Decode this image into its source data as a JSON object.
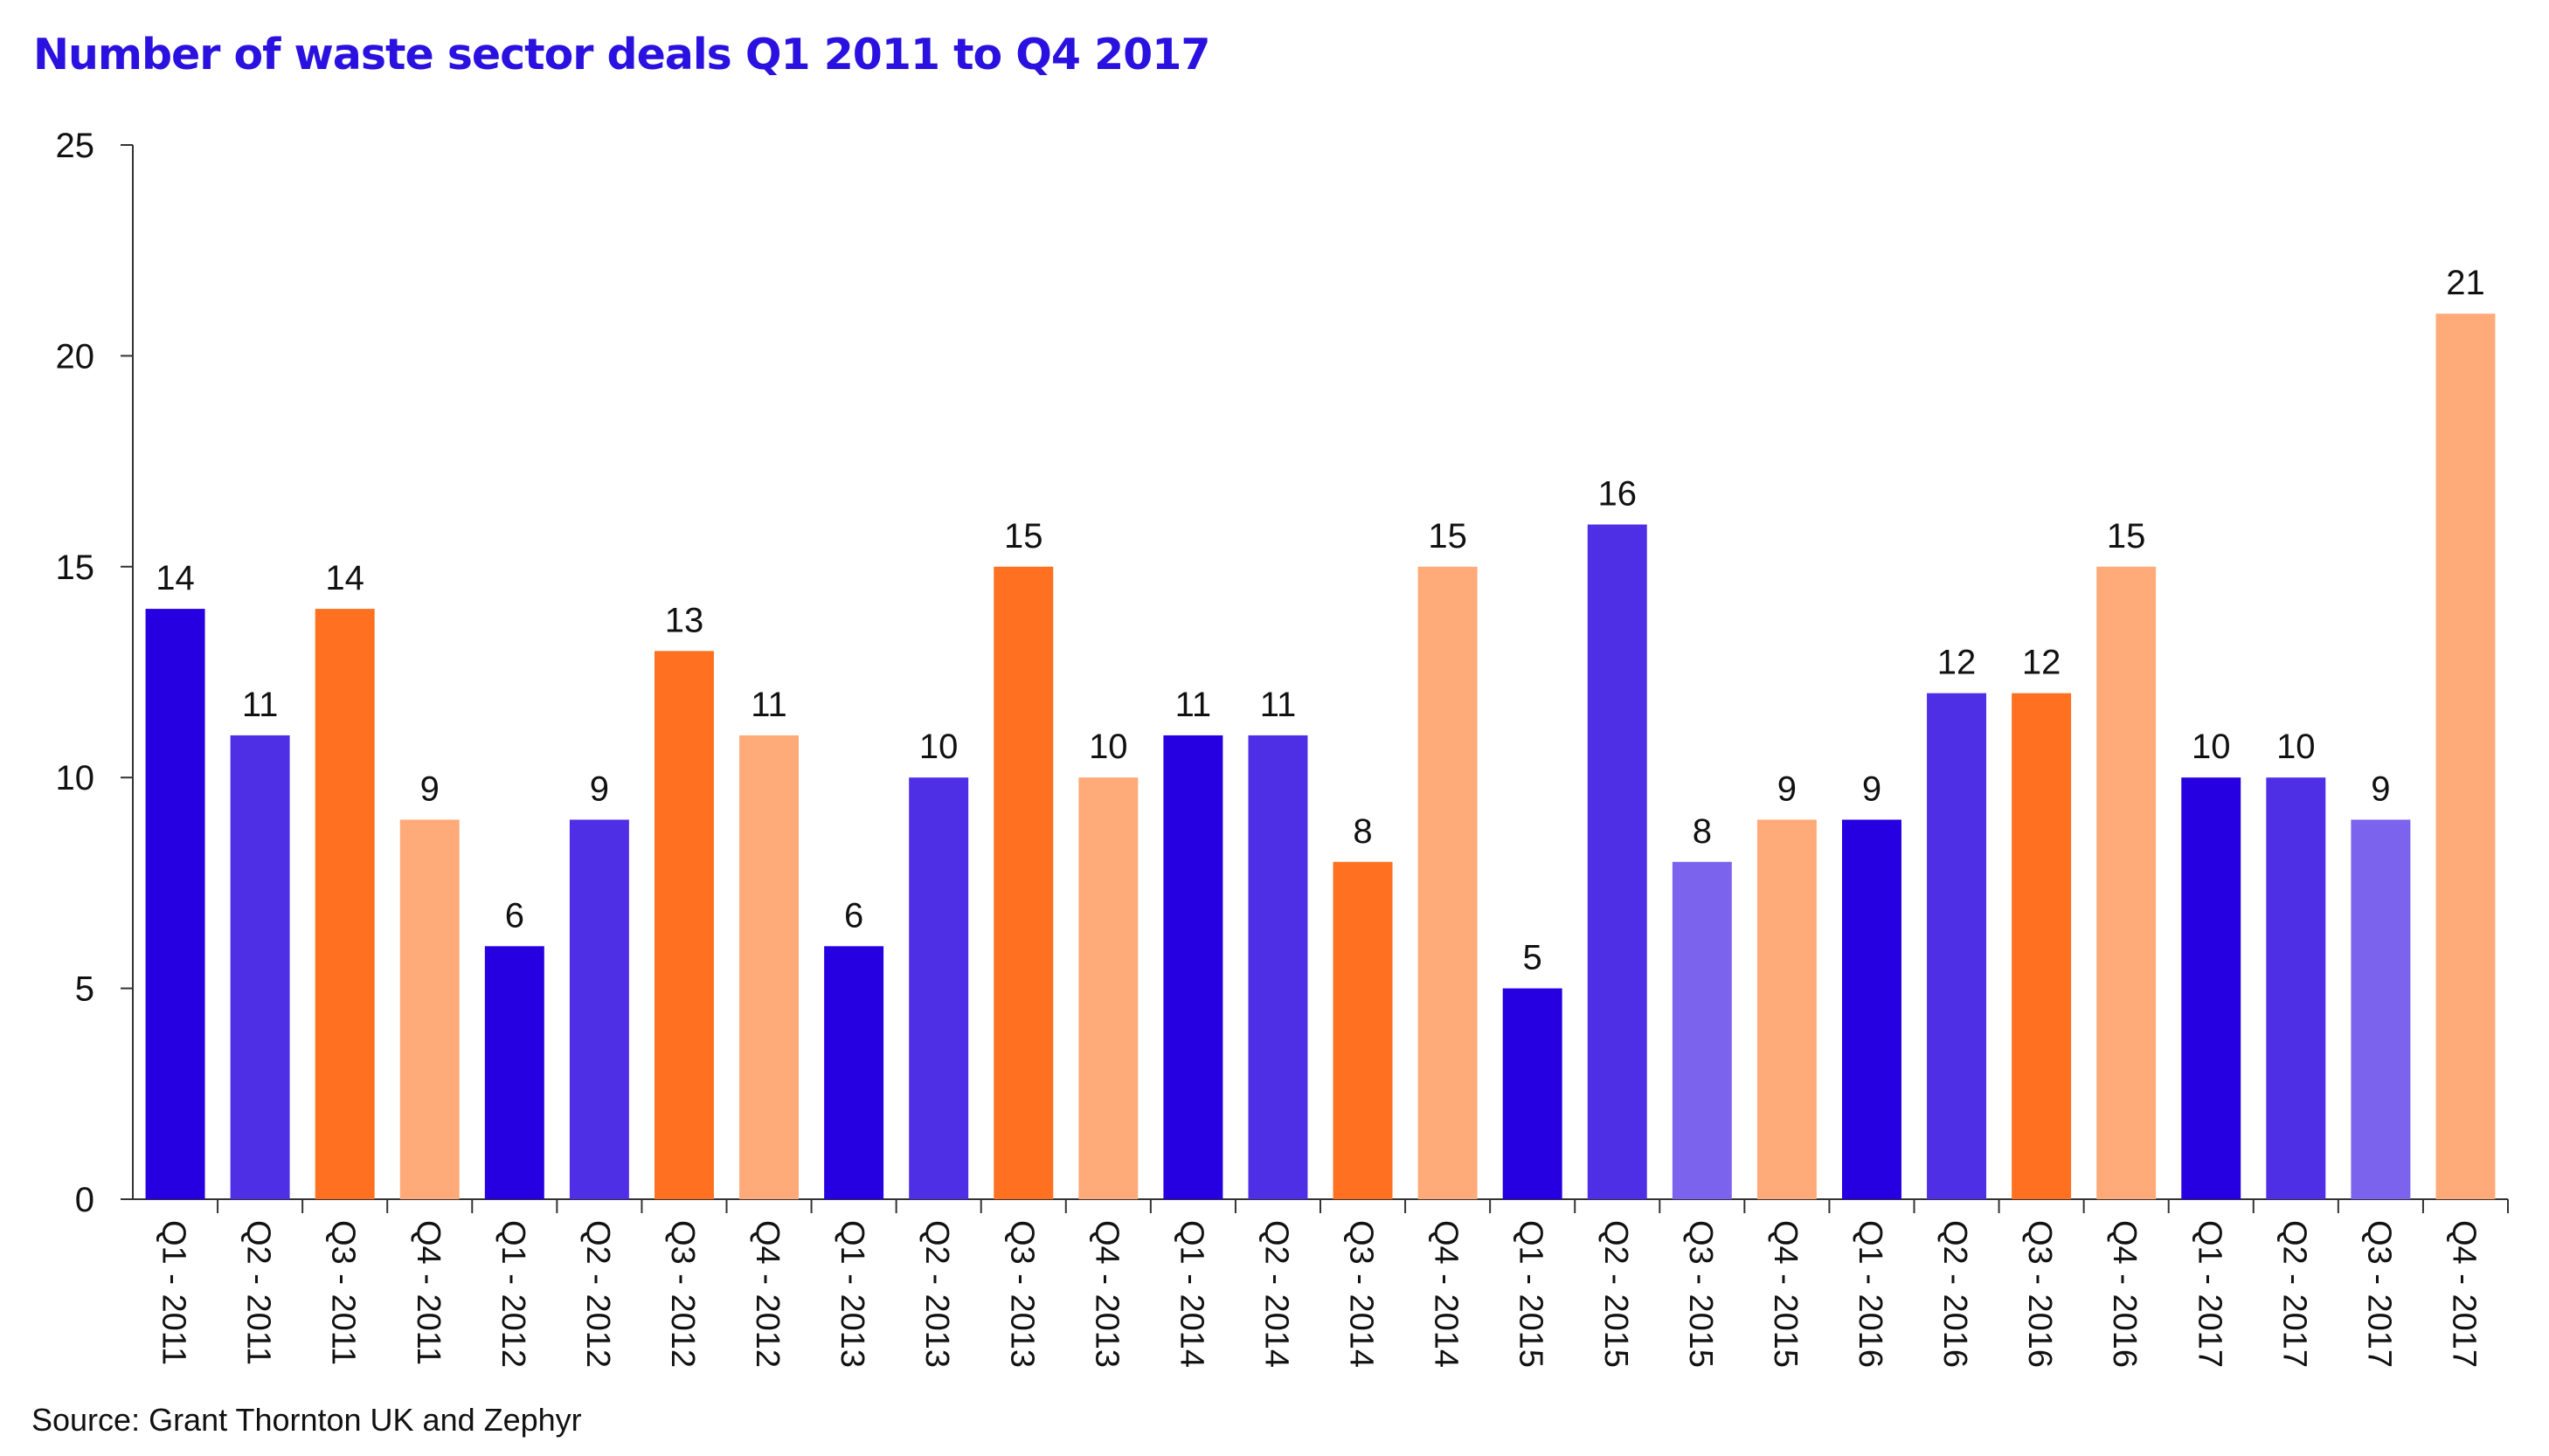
{
  "chart_data": {
    "type": "bar",
    "title": "Number of waste sector deals Q1 2011 to Q4 2017",
    "source": "Source: Grant Thornton UK and Zephyr",
    "xlabel": "",
    "ylabel": "",
    "ylim": [
      0,
      25
    ],
    "yticks": [
      "0",
      "5",
      "10",
      "15",
      "20",
      "25"
    ],
    "grid": false,
    "legend": "none",
    "categories": [
      "Q1 - 2011",
      "Q2 - 2011",
      "Q3 - 2011",
      "Q4 - 2011",
      "Q1 - 2012",
      "Q2 - 2012",
      "Q3 - 2012",
      "Q4 - 2012",
      "Q1 - 2013",
      "Q2 - 2013",
      "Q3 - 2013",
      "Q4 - 2013",
      "Q1 - 2014",
      "Q2 - 2014",
      "Q3 - 2014",
      "Q4 - 2014",
      "Q1 - 2015",
      "Q2 - 2015",
      "Q3 - 2015",
      "Q4 - 2015",
      "Q1 - 2016",
      "Q2 - 2016",
      "Q3 - 2016",
      "Q4 - 2016",
      "Q1 - 2017",
      "Q2 - 2017",
      "Q3 - 2017",
      "Q4 - 2017"
    ],
    "values": [
      14,
      11,
      14,
      9,
      6,
      9,
      13,
      11,
      6,
      10,
      15,
      10,
      11,
      11,
      8,
      15,
      5,
      16,
      8,
      9,
      9,
      12,
      12,
      15,
      10,
      10,
      9,
      21
    ],
    "bar_colors": [
      "#2600e0",
      "#4f2fe6",
      "#ff7020",
      "#ffaa78",
      "#2600e0",
      "#4f2fe6",
      "#ff7020",
      "#ffaa78",
      "#2600e0",
      "#4f2fe6",
      "#ff7020",
      "#ffaa78",
      "#2600e0",
      "#4f2fe6",
      "#ff7020",
      "#ffaa78",
      "#2600e0",
      "#4f2fe6",
      "#7b63ed",
      "#ffaa78",
      "#2600e0",
      "#4f2fe6",
      "#ff7020",
      "#ffaa78",
      "#2600e0",
      "#4f2fe6",
      "#7b63ed",
      "#ffaa78"
    ],
    "title_color": "#2a11e0"
  }
}
